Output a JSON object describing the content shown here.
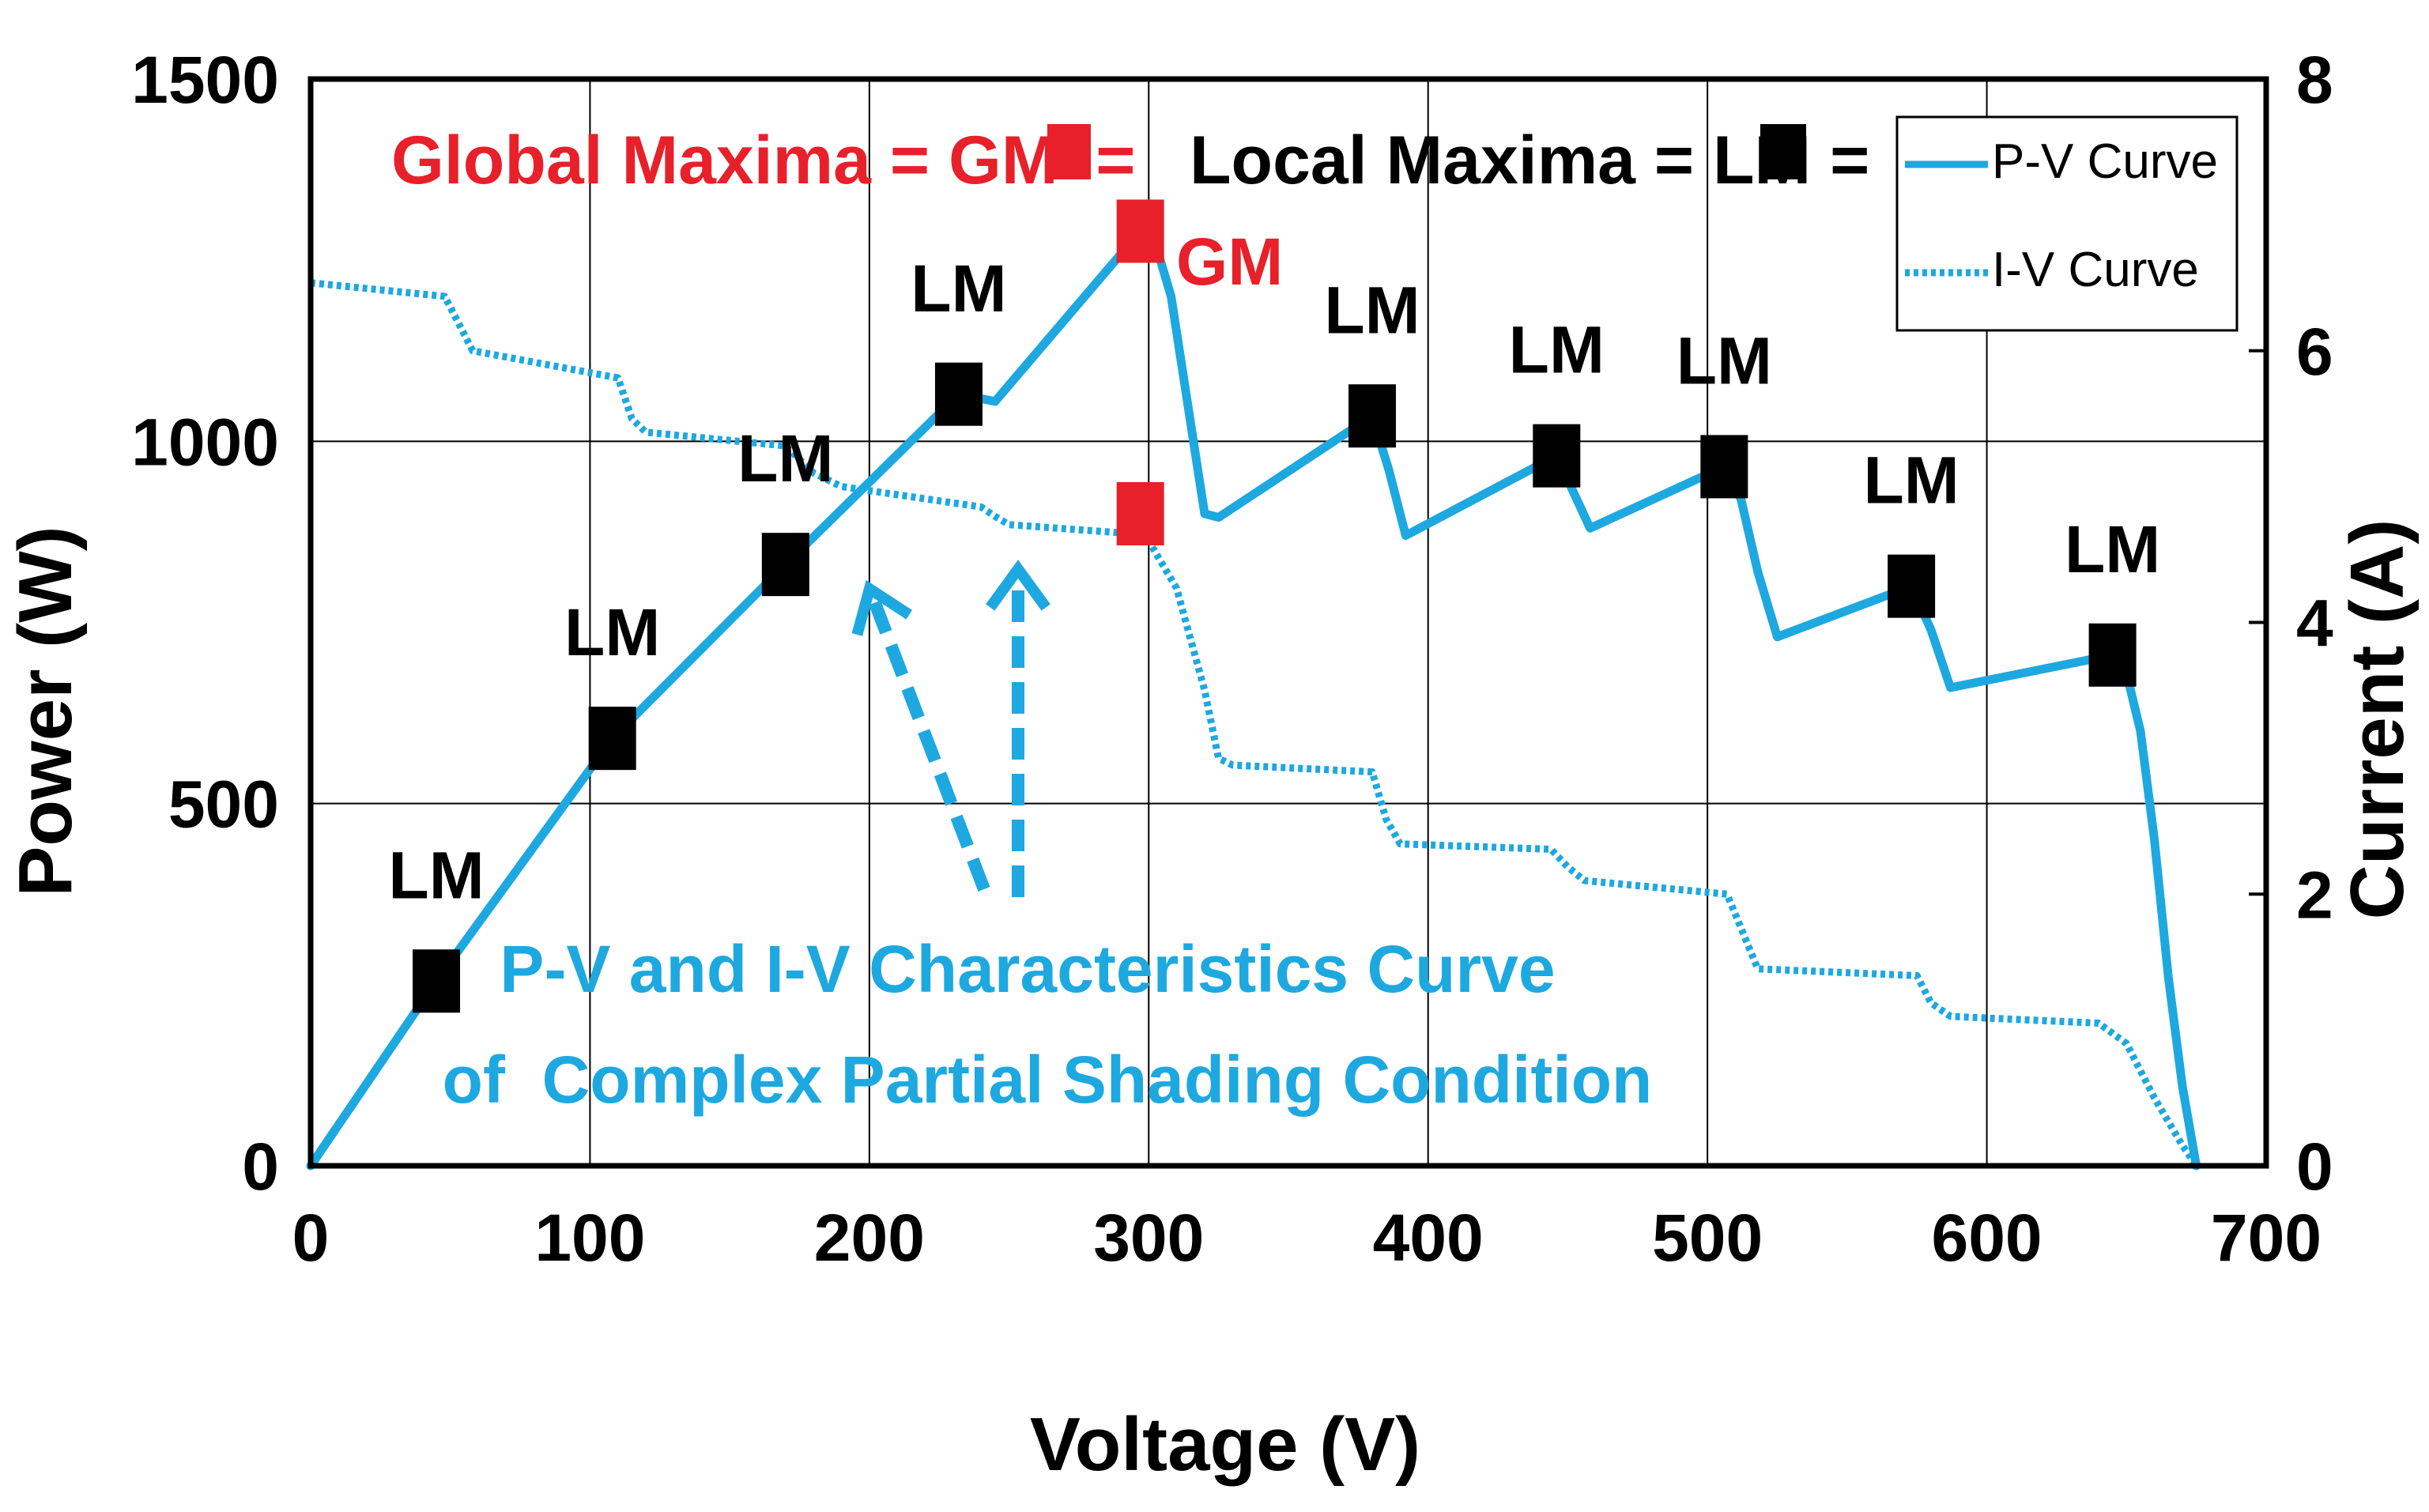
{
  "chart_data": {
    "type": "line",
    "xlabel": "Voltage (V)",
    "ylabel": "Power (W)",
    "y2label": "Current (A)",
    "xlim": [
      0,
      700
    ],
    "ylim": [
      0,
      1500
    ],
    "y2lim": [
      0,
      8
    ],
    "xticks": [
      "0",
      "100",
      "200",
      "300",
      "400",
      "500",
      "600",
      "700"
    ],
    "yticks": [
      "0",
      "500",
      "1000",
      "1500"
    ],
    "y2ticks": [
      "0",
      "2",
      "4",
      "6",
      "8"
    ],
    "grid": true,
    "colors": {
      "curve": "#1ea8e0",
      "gm": "#e8202a",
      "lm": "#000000"
    },
    "series": [
      {
        "name": "P-V Curve",
        "axis": "left",
        "style": "solid",
        "x": [
          0,
          45,
          108,
          170,
          232,
          245,
          297,
          303,
          308,
          314,
          320,
          325,
          380,
          386,
          392,
          446,
          452,
          458,
          506,
          512,
          518,
          525,
          573,
          580,
          587,
          645,
          650,
          655,
          660,
          665,
          670,
          675
        ],
        "y": [
          0,
          255,
          590,
          830,
          1065,
          1055,
          1290,
          1265,
          1200,
          1050,
          900,
          895,
          1035,
          960,
          870,
          980,
          930,
          880,
          965,
          920,
          820,
          730,
          800,
          740,
          660,
          705,
          680,
          600,
          450,
          260,
          110,
          0
        ]
      },
      {
        "name": "I-V Curve",
        "axis": "right",
        "style": "dotted",
        "x": [
          0,
          48,
          53,
          58,
          110,
          115,
          120,
          170,
          180,
          190,
          240,
          245,
          250,
          290,
          300,
          310,
          320,
          325,
          330,
          380,
          385,
          390,
          444,
          450,
          456,
          507,
          512,
          518,
          575,
          580,
          587,
          640,
          650,
          660,
          670,
          675
        ],
        "y": [
          6.5,
          6.4,
          6.2,
          6.0,
          5.8,
          5.5,
          5.4,
          5.3,
          5.1,
          5.0,
          4.85,
          4.78,
          4.72,
          4.66,
          4.6,
          4.25,
          3.5,
          3.0,
          2.95,
          2.9,
          2.55,
          2.37,
          2.33,
          2.2,
          2.1,
          2.0,
          1.75,
          1.45,
          1.4,
          1.2,
          1.1,
          1.05,
          0.9,
          0.5,
          0.15,
          0.0
        ]
      }
    ],
    "gm_points": [
      {
        "x": 297,
        "y": 1290,
        "axis": "left"
      },
      {
        "x": 297,
        "y": 4.8,
        "axis": "right"
      }
    ],
    "lm_points": [
      {
        "x": 45,
        "y": 255
      },
      {
        "x": 108,
        "y": 590
      },
      {
        "x": 170,
        "y": 830
      },
      {
        "x": 232,
        "y": 1065
      },
      {
        "x": 380,
        "y": 1035
      },
      {
        "x": 446,
        "y": 980
      },
      {
        "x": 506,
        "y": 965
      },
      {
        "x": 573,
        "y": 800
      },
      {
        "x": 645,
        "y": 705
      }
    ],
    "annotations": {
      "lm_label": "LM",
      "gm_label": "GM",
      "global_legend": "Global Maxima = GM  =",
      "local_legend": "Local Maxima = LM =",
      "caption_line1": "P-V and I-V Characteristics Curve",
      "caption_line2": "of  Complex Partial Shading Condition"
    },
    "legend": {
      "placement": "top-right",
      "entries": [
        "P-V Curve",
        "I-V Curve"
      ]
    }
  }
}
